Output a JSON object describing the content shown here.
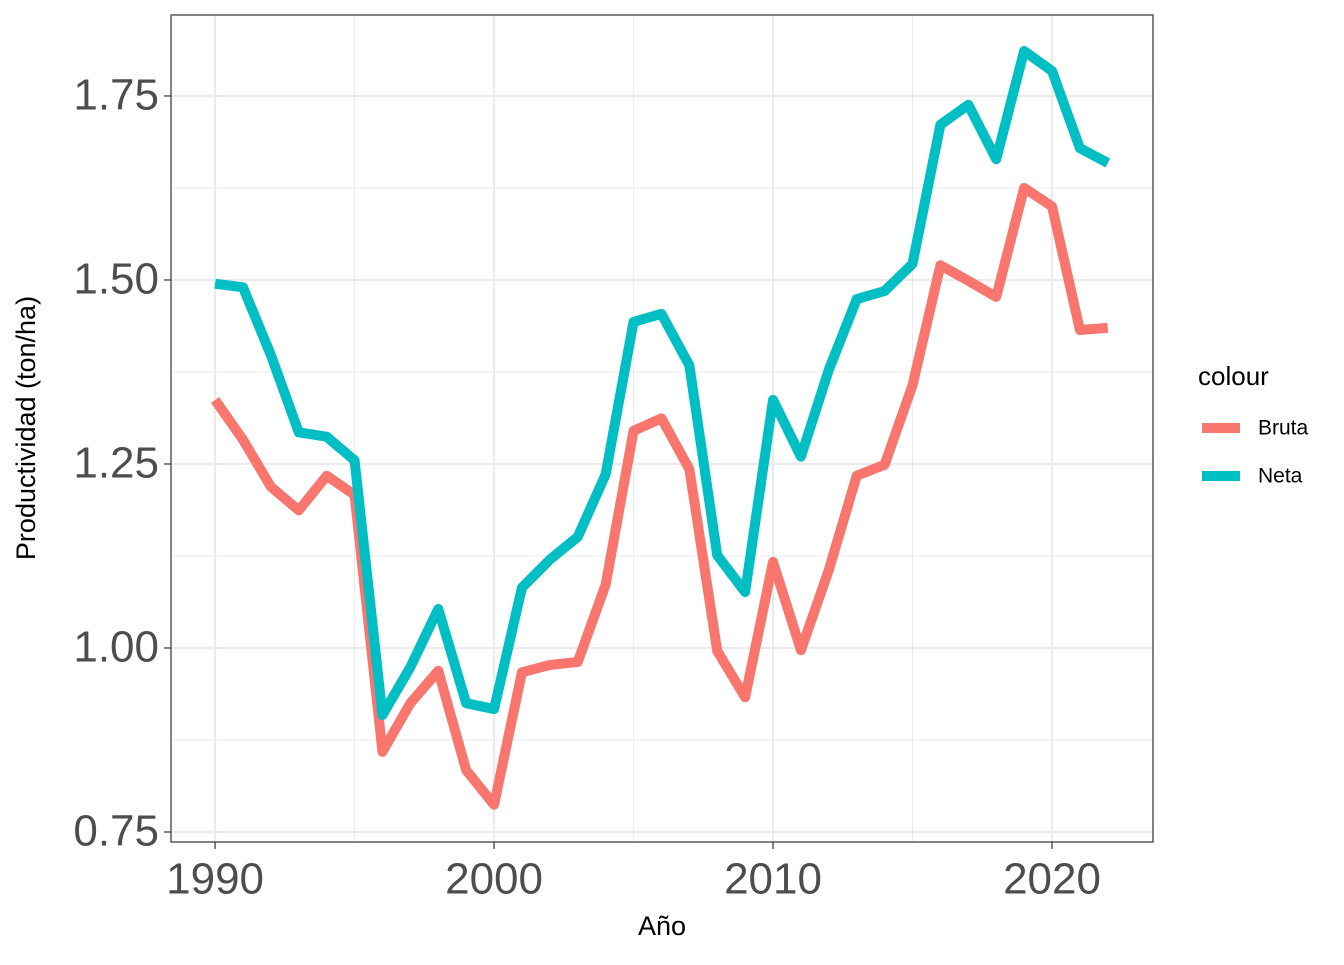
{
  "chart_data": {
    "type": "line",
    "x_label": "Año",
    "y_label": "Productividad (ton/ha)",
    "x": [
      1990,
      1991,
      1992,
      1993,
      1994,
      1995,
      1996,
      1997,
      1998,
      1999,
      2000,
      2001,
      2002,
      2003,
      2004,
      2005,
      2006,
      2007,
      2008,
      2009,
      2010,
      2011,
      2012,
      2013,
      2014,
      2015,
      2016,
      2017,
      2018,
      2019,
      2020,
      2021,
      2022
    ],
    "series": [
      {
        "name": "Bruta",
        "color": "#f8766d",
        "values": [
          1.337,
          1.283,
          1.219,
          1.187,
          1.234,
          1.208,
          0.859,
          0.925,
          0.969,
          0.834,
          0.787,
          0.967,
          0.977,
          0.981,
          1.086,
          1.295,
          1.312,
          1.243,
          0.996,
          0.933,
          1.117,
          0.997,
          1.106,
          1.234,
          1.249,
          1.357,
          1.52,
          1.499,
          1.477,
          1.625,
          1.6,
          1.432,
          1.435
        ]
      },
      {
        "name": "Neta",
        "color": "#00bfc4",
        "values": [
          1.495,
          1.49,
          1.398,
          1.293,
          1.287,
          1.255,
          0.909,
          0.974,
          1.053,
          0.925,
          0.917,
          1.082,
          1.12,
          1.151,
          1.236,
          1.443,
          1.454,
          1.384,
          1.126,
          1.076,
          1.337,
          1.26,
          1.378,
          1.474,
          1.485,
          1.522,
          1.711,
          1.738,
          1.664,
          1.811,
          1.784,
          1.679,
          1.659
        ]
      }
    ],
    "legend_title": "colour",
    "xlim": [
      1988.42,
      2023.62
    ],
    "xticks": [
      1990,
      2000,
      2010,
      2020
    ],
    "ylim": [
      0.7364,
      1.86
    ],
    "yticks": [
      {
        "value": 0.75,
        "label": "0.75"
      },
      {
        "value": 1.0,
        "label": "1.00"
      },
      {
        "value": 1.25,
        "label": "1.25"
      },
      {
        "value": 1.5,
        "label": "1.50"
      },
      {
        "value": 1.75,
        "label": "1.75"
      }
    ],
    "grid": true,
    "legend_position": "right"
  }
}
